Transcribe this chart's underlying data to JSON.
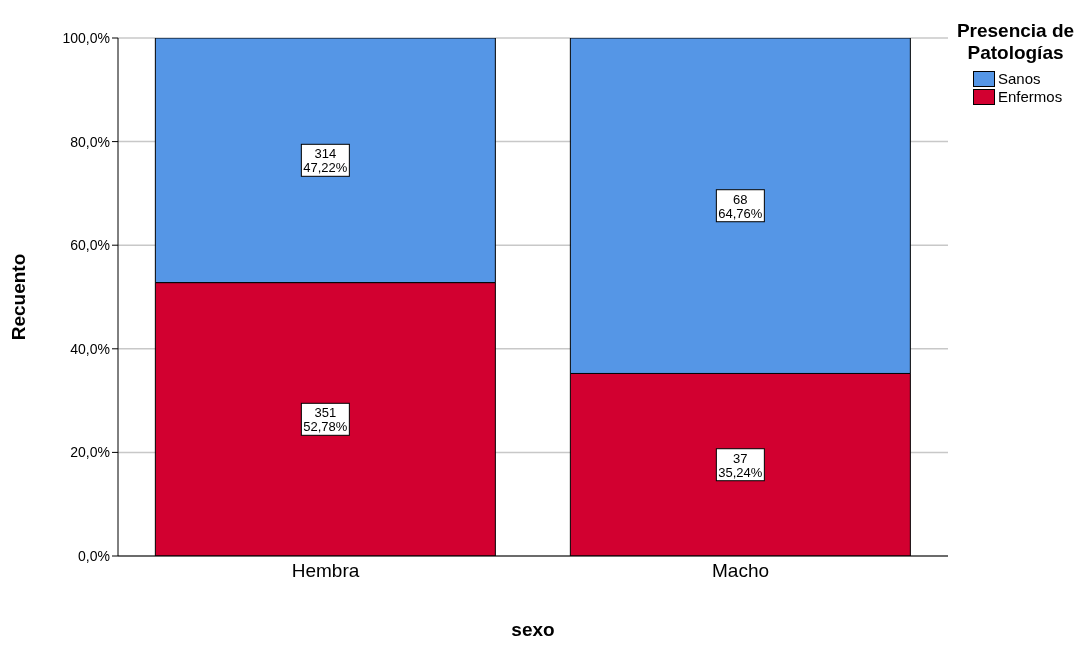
{
  "chart_data": {
    "type": "bar",
    "stacked": true,
    "xlabel": "sexo",
    "ylabel": "Recuento",
    "legend_title": "Presencia de Patologías",
    "legend": "top right",
    "grid": "y",
    "categories": [
      "Hembra",
      "Macho"
    ],
    "series": [
      {
        "name": "Enfermos",
        "color": "#d20030",
        "values": [
          52.78,
          35.24
        ],
        "value_labels": [
          "351\n52,78%",
          "37\n35,24%"
        ]
      },
      {
        "name": "Sanos",
        "color": "#5596e6",
        "values": [
          47.22,
          64.76
        ],
        "value_labels": [
          "314\n47,22%",
          "68\n64,76%"
        ]
      }
    ],
    "ylim": [
      0,
      100
    ],
    "yticks": [
      {
        "value": 0,
        "label": "0,0%"
      },
      {
        "value": 20,
        "label": "20,0%"
      },
      {
        "value": 40,
        "label": "40,0%"
      },
      {
        "value": 60,
        "label": "60,0%"
      },
      {
        "value": 80,
        "label": "80,0%"
      },
      {
        "value": 100,
        "label": "100,0%"
      }
    ]
  }
}
